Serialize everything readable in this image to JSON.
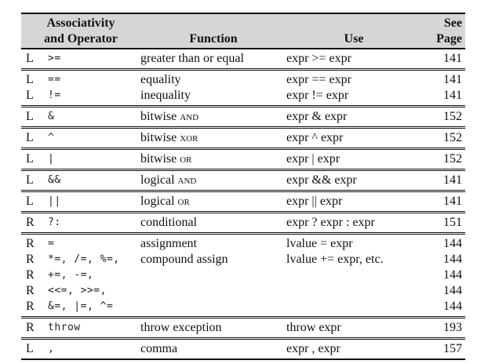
{
  "header": {
    "assoc_op_line1": "Associativity",
    "assoc_op_line2": "and Operator",
    "function": "Function",
    "use": "Use",
    "page_line1": "See",
    "page_line2": "Page"
  },
  "groups": [
    {
      "rows": [
        {
          "assoc": "L",
          "op": ">=",
          "func": "greater than or equal",
          "use": "expr >= expr",
          "page": "141"
        }
      ]
    },
    {
      "rows": [
        {
          "assoc": "L",
          "op": "==",
          "func": "equality",
          "use": "expr == expr",
          "page": "141"
        },
        {
          "assoc": "L",
          "op": "!=",
          "func": "inequality",
          "use": "expr != expr",
          "page": "141"
        }
      ]
    },
    {
      "rows": [
        {
          "assoc": "L",
          "op": "&",
          "func": "bitwise AND",
          "use": "expr & expr",
          "page": "152"
        }
      ]
    },
    {
      "rows": [
        {
          "assoc": "L",
          "op": "^",
          "func": "bitwise XOR",
          "use": "expr ^ expr",
          "page": "152"
        }
      ]
    },
    {
      "rows": [
        {
          "assoc": "L",
          "op": "|",
          "func": "bitwise OR",
          "use": "expr | expr",
          "page": "152"
        }
      ]
    },
    {
      "rows": [
        {
          "assoc": "L",
          "op": "&&",
          "func": "logical AND",
          "use": "expr && expr",
          "page": "141"
        }
      ]
    },
    {
      "rows": [
        {
          "assoc": "L",
          "op": "||",
          "func": "logical OR",
          "use": "expr || expr",
          "page": "141"
        }
      ]
    },
    {
      "rows": [
        {
          "assoc": "R",
          "op": "?:",
          "func": "conditional",
          "use": "expr ? expr : expr",
          "page": "151"
        }
      ]
    },
    {
      "rows": [
        {
          "assoc": "R",
          "op": "=",
          "func": "assignment",
          "use": "lvalue = expr",
          "page": "144"
        },
        {
          "assoc": "R",
          "op": "*=, /=, %=,",
          "func": "compound assign",
          "use": "lvalue += expr, etc.",
          "page": "144"
        },
        {
          "assoc": "R",
          "op": "+=, -=,",
          "func": "",
          "use": "",
          "page": "144"
        },
        {
          "assoc": "R",
          "op": "<<=, >>=,",
          "func": "",
          "use": "",
          "page": "144"
        },
        {
          "assoc": "R",
          "op": "&=, |=, ^=",
          "func": "",
          "use": "",
          "page": "144"
        }
      ]
    },
    {
      "rows": [
        {
          "assoc": "R",
          "op": "throw",
          "func": "throw exception",
          "use": "throw expr",
          "page": "193"
        }
      ]
    },
    {
      "rows": [
        {
          "assoc": "L",
          "op": ",",
          "func": "comma",
          "use": "expr , expr",
          "page": "157"
        }
      ]
    }
  ]
}
